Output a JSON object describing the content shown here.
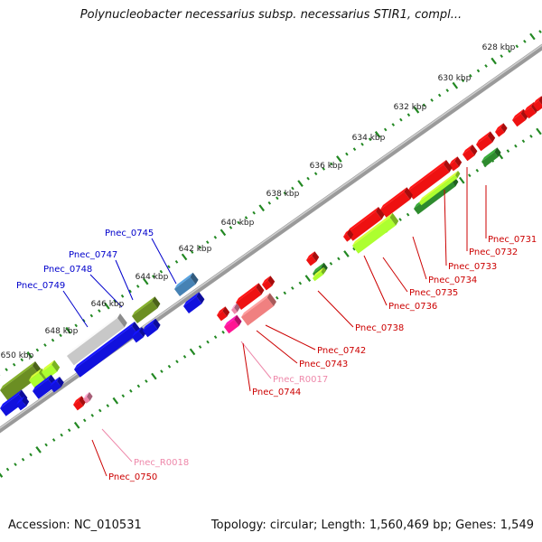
{
  "title": "Polynucleobacter necessarius subsp. necessarius STIR1, compl...",
  "footer": {
    "accession": "Accession: NC_010531",
    "summary": "Topology: circular; Length: 1,560,469 bp; Genes: 1,549"
  },
  "ruler_labels": [
    "628 kbp",
    "630 kbp",
    "632 kbp",
    "634 kbp",
    "636 kbp",
    "638 kbp",
    "640 kbp",
    "642 kbp",
    "644 kbp",
    "646 kbp",
    "648 kbp",
    "650 kbp"
  ],
  "gene_labels": [
    {
      "text": "Pnec_0731",
      "color": "#cc0000"
    },
    {
      "text": "Pnec_0732",
      "color": "#cc0000"
    },
    {
      "text": "Pnec_0733",
      "color": "#cc0000"
    },
    {
      "text": "Pnec_0734",
      "color": "#cc0000"
    },
    {
      "text": "Pnec_0735",
      "color": "#cc0000"
    },
    {
      "text": "Pnec_0736",
      "color": "#cc0000"
    },
    {
      "text": "Pnec_0738",
      "color": "#cc0000"
    },
    {
      "text": "Pnec_0742",
      "color": "#cc0000"
    },
    {
      "text": "Pnec_0743",
      "color": "#cc0000"
    },
    {
      "text": "Pnec_R0017",
      "color": "#ee88aa"
    },
    {
      "text": "Pnec_0744",
      "color": "#cc0000"
    },
    {
      "text": "Pnec_0745",
      "color": "#0000cc"
    },
    {
      "text": "Pnec_0747",
      "color": "#0000cc"
    },
    {
      "text": "Pnec_0748",
      "color": "#0000cc"
    },
    {
      "text": "Pnec_0749",
      "color": "#0000cc"
    },
    {
      "text": "Pnec_R0018",
      "color": "#ee88aa"
    },
    {
      "text": "Pnec_0750",
      "color": "#cc0000"
    }
  ],
  "colors": {
    "forward_red": "#ee1111",
    "reverse_blue": "#1111dd",
    "backbone": "#888888",
    "ruler_dots": "#228822",
    "rRNA_pink": "#ee88aa",
    "olive": "#6b8e23",
    "lime": "#adff2f",
    "grey_gene": "#c8c8c8",
    "steel_blue": "#4682b4",
    "magenta": "#ff1493",
    "salmon": "#f08080"
  }
}
